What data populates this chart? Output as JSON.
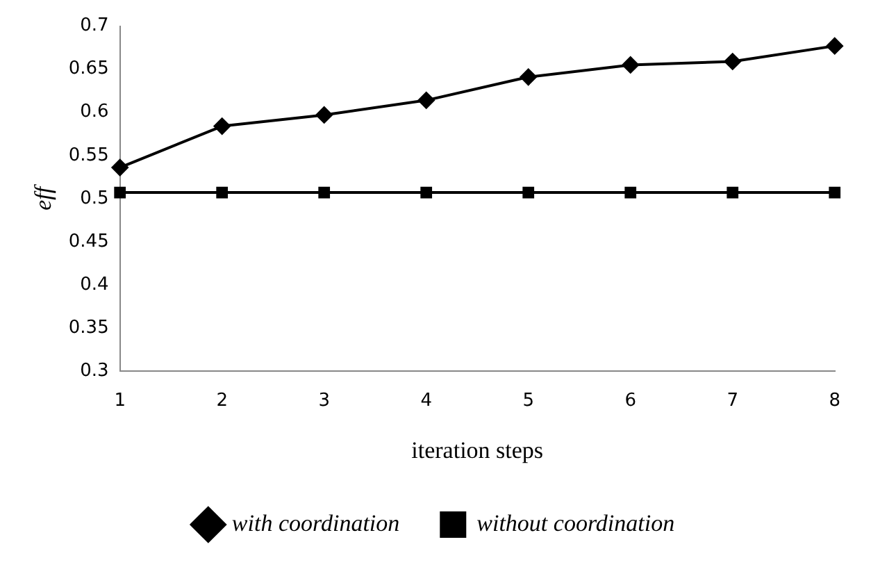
{
  "chart_data": {
    "type": "line",
    "xlabel": "iteration steps",
    "ylabel": "eff",
    "categories": [
      "1",
      "2",
      "3",
      "4",
      "5",
      "6",
      "7",
      "8"
    ],
    "series": [
      {
        "name": "with coordination",
        "color": "#000000",
        "marker": "diamond",
        "values": [
          0.536,
          0.584,
          0.597,
          0.614,
          0.641,
          0.655,
          0.659,
          0.677
        ]
      },
      {
        "name": "without coordination",
        "color": "#000000",
        "marker": "square",
        "values": [
          0.507,
          0.507,
          0.507,
          0.507,
          0.507,
          0.507,
          0.507,
          0.507
        ]
      }
    ],
    "ylim": [
      0.3,
      0.7
    ],
    "yticks": [
      0.3,
      0.35,
      0.4,
      0.45,
      0.5,
      0.55,
      0.6,
      0.65,
      0.7
    ],
    "grid": false,
    "legend": "bottom",
    "line_style": "solid"
  }
}
